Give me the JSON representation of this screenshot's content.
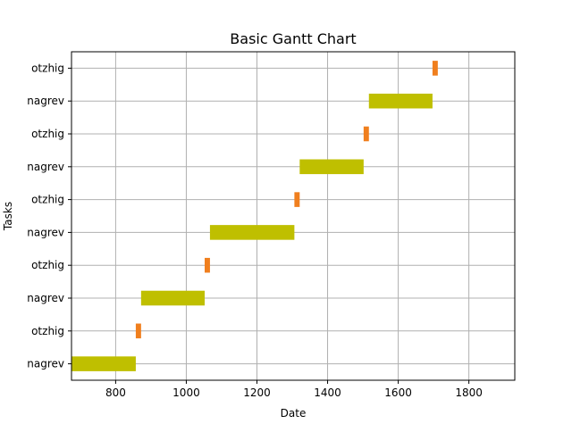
{
  "chart_data": {
    "type": "gantt",
    "title": "Basic Gantt Chart",
    "xlabel": "Date",
    "ylabel": "Tasks",
    "xlim": [
      675,
      1930
    ],
    "xticks": [
      800,
      1000,
      1200,
      1400,
      1600,
      1800
    ],
    "grid": true,
    "tasks": [
      {
        "label": "nagrev",
        "start": 675,
        "end": 857,
        "color": "#bfbf00"
      },
      {
        "label": "otzhig",
        "start": 857,
        "end": 872,
        "color": "#f07f1e"
      },
      {
        "label": "nagrev",
        "start": 872,
        "end": 1052,
        "color": "#bfbf00"
      },
      {
        "label": "otzhig",
        "start": 1052,
        "end": 1067,
        "color": "#f07f1e"
      },
      {
        "label": "nagrev",
        "start": 1067,
        "end": 1306,
        "color": "#bfbf00"
      },
      {
        "label": "otzhig",
        "start": 1306,
        "end": 1321,
        "color": "#f07f1e"
      },
      {
        "label": "nagrev",
        "start": 1321,
        "end": 1502,
        "color": "#bfbf00"
      },
      {
        "label": "otzhig",
        "start": 1502,
        "end": 1517,
        "color": "#f07f1e"
      },
      {
        "label": "nagrev",
        "start": 1517,
        "end": 1697,
        "color": "#bfbf00"
      },
      {
        "label": "otzhig",
        "start": 1697,
        "end": 1712,
        "color": "#f07f1e"
      }
    ]
  }
}
